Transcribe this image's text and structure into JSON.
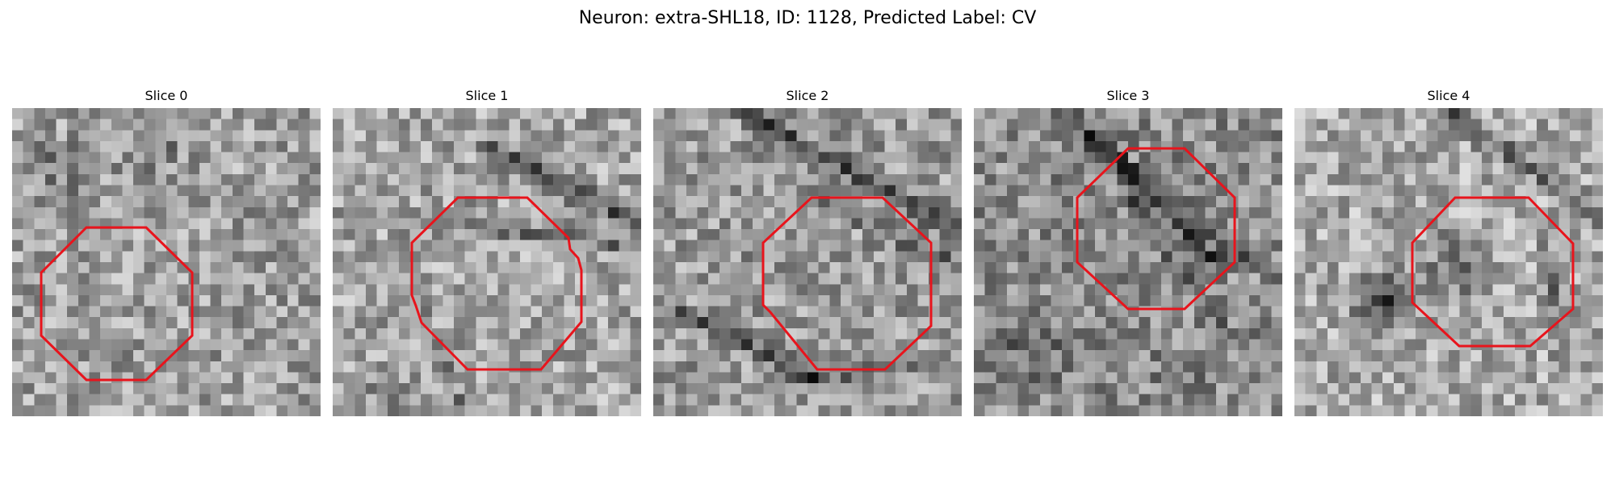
{
  "figure": {
    "title": "Neuron: extra-SHL18, ID: 1128, Predicted Label: CV",
    "roi_color": "#e8141c"
  },
  "slices": [
    {
      "label": "Slice 0"
    },
    {
      "label": "Slice 1"
    },
    {
      "label": "Slice 2"
    },
    {
      "label": "Slice 3"
    },
    {
      "label": "Slice 4"
    }
  ]
}
